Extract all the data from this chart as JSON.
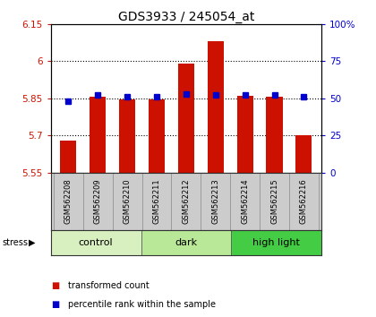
{
  "title": "GDS3933 / 245054_at",
  "samples": [
    "GSM562208",
    "GSM562209",
    "GSM562210",
    "GSM562211",
    "GSM562212",
    "GSM562213",
    "GSM562214",
    "GSM562215",
    "GSM562216"
  ],
  "red_values": [
    5.68,
    5.855,
    5.845,
    5.845,
    5.99,
    6.08,
    5.86,
    5.855,
    5.7
  ],
  "percentile_values": [
    48,
    52,
    51,
    51,
    53,
    52,
    52,
    52,
    51
  ],
  "ylim_left": [
    5.55,
    6.15
  ],
  "ylim_right": [
    0,
    100
  ],
  "yticks_left": [
    5.55,
    5.7,
    5.85,
    6.0,
    6.15
  ],
  "yticks_right": [
    0,
    25,
    50,
    75,
    100
  ],
  "ytick_labels_left": [
    "5.55",
    "5.7",
    "5.85",
    "6",
    "6.15"
  ],
  "ytick_labels_right": [
    "0",
    "25",
    "50",
    "75",
    "100%"
  ],
  "groups": [
    {
      "label": "control",
      "color": "#d8f0c0"
    },
    {
      "label": "dark",
      "color": "#b8e898"
    },
    {
      "label": "high light",
      "color": "#44cc44"
    }
  ],
  "stress_label": "stress",
  "bar_color": "#cc1100",
  "dot_color": "#0000cc",
  "bar_width": 0.55,
  "background_color": "#ffffff",
  "bar_bottom": 5.55,
  "grid_yticks": [
    5.7,
    5.85,
    6.0
  ],
  "label_bg": "#cccccc",
  "label_border": "#888888"
}
